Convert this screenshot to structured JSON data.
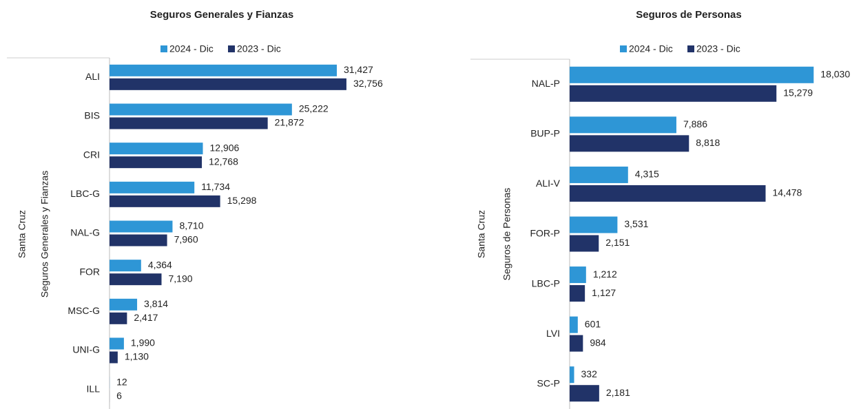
{
  "chart_data": [
    {
      "type": "barh",
      "title": "Seguros Generales y Fianzas",
      "group_labels": [
        "Santa Cruz",
        "Seguros Generales y Fianzas"
      ],
      "categories": [
        "ALI",
        "BIS",
        "CRI",
        "LBC-G",
        "NAL-G",
        "FOR",
        "MSC-G",
        "UNI-G",
        "ILL"
      ],
      "series": [
        {
          "name": "2024 - Dic",
          "color": "#2e96d6",
          "values": [
            31427,
            25222,
            12906,
            11734,
            8710,
            4364,
            3814,
            1990,
            12
          ],
          "value_labels": [
            "31,427",
            "25,222",
            "12,906",
            "11,734",
            "8,710",
            "4,364",
            "3,814",
            "1,990",
            "12"
          ]
        },
        {
          "name": "2023 - Dic",
          "color": "#213368",
          "values": [
            32756,
            21872,
            12768,
            15298,
            7960,
            7190,
            2417,
            1130,
            6
          ],
          "value_labels": [
            "32,756",
            "21,872",
            "12,768",
            "15,298",
            "7,960",
            "7,190",
            "2,417",
            "1,130",
            "6"
          ]
        }
      ],
      "xlim": [
        0,
        40000
      ],
      "legend": "top"
    },
    {
      "type": "barh",
      "title": "Seguros de Personas",
      "group_labels": [
        "Santa Cruz",
        "Seguros de Personas"
      ],
      "categories": [
        "NAL-P",
        "BUP-P",
        "ALI-V",
        "FOR-P",
        "LBC-P",
        "LVI",
        "SC-P"
      ],
      "series": [
        {
          "name": "2024 - Dic",
          "color": "#2e96d6",
          "values": [
            18030,
            7886,
            4315,
            3531,
            1212,
            601,
            332
          ],
          "value_labels": [
            "18,030",
            "7,886",
            "4,315",
            "3,531",
            "1,212",
            "601",
            "332"
          ]
        },
        {
          "name": "2023 - Dic",
          "color": "#213368",
          "values": [
            15279,
            8818,
            14478,
            2151,
            1127,
            984,
            2181
          ],
          "value_labels": [
            "15,279",
            "8,818",
            "14,478",
            "2,151",
            "1,127",
            "984",
            "2,181"
          ]
        }
      ],
      "xlim": [
        0,
        20000
      ],
      "legend": "top"
    }
  ]
}
